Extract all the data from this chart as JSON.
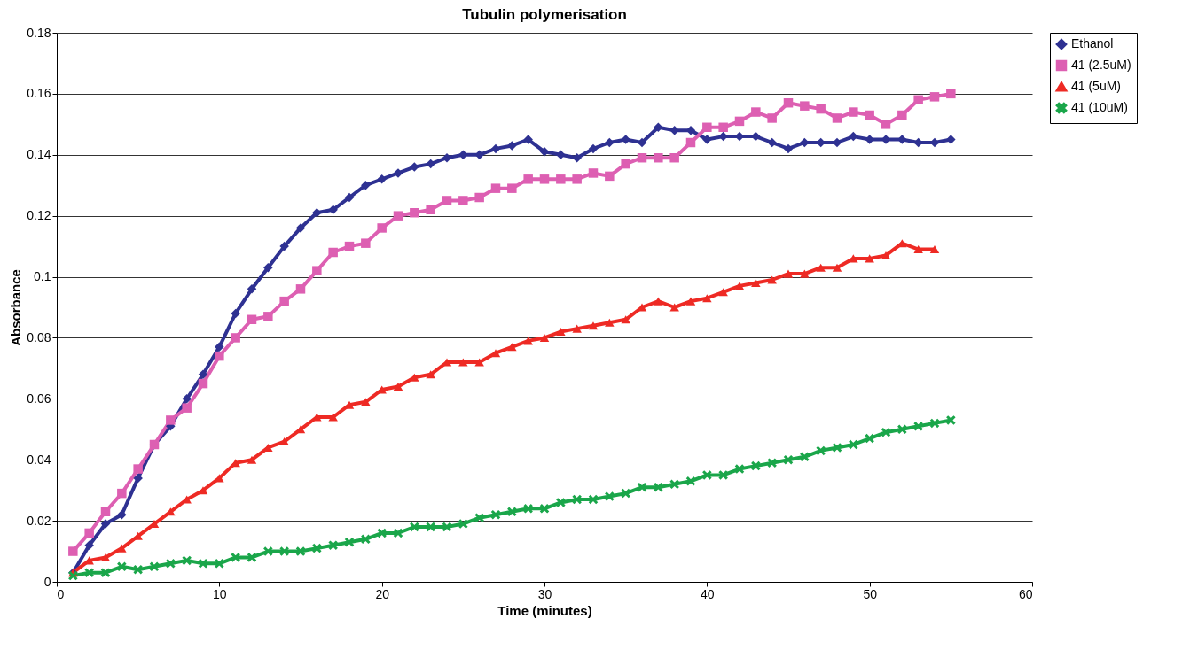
{
  "chart_data": {
    "type": "line",
    "title": "Tubulin polymerisation",
    "xlabel": "Time (minutes)",
    "ylabel": "Absorbance",
    "x": [
      1,
      2,
      3,
      4,
      5,
      6,
      7,
      8,
      9,
      10,
      11,
      12,
      13,
      14,
      15,
      16,
      17,
      18,
      19,
      20,
      21,
      22,
      23,
      24,
      25,
      26,
      27,
      28,
      29,
      30,
      31,
      32,
      33,
      34,
      35,
      36,
      37,
      38,
      39,
      40,
      41,
      42,
      43,
      44,
      45,
      46,
      47,
      48,
      49,
      50,
      51,
      52,
      53,
      54,
      55
    ],
    "series": [
      {
        "name": "Ethanol",
        "color": "#2e3192",
        "marker": "diamond",
        "values": [
          0.003,
          0.012,
          0.019,
          0.022,
          0.034,
          0.045,
          0.051,
          0.06,
          0.068,
          0.077,
          0.088,
          0.096,
          0.103,
          0.11,
          0.116,
          0.121,
          0.122,
          0.126,
          0.13,
          0.132,
          0.134,
          0.136,
          0.137,
          0.139,
          0.14,
          0.14,
          0.142,
          0.143,
          0.145,
          0.141,
          0.14,
          0.139,
          0.142,
          0.144,
          0.145,
          0.144,
          0.149,
          0.148,
          0.148,
          0.145,
          0.146,
          0.146,
          0.146,
          0.144,
          0.142,
          0.144,
          0.144,
          0.144,
          0.146,
          0.145,
          0.145,
          0.145,
          0.144,
          0.144,
          0.145
        ]
      },
      {
        "name": "41 (2.5uM)",
        "color": "#dd5fb2",
        "marker": "square",
        "values": [
          0.01,
          0.016,
          0.023,
          0.029,
          0.037,
          0.045,
          0.053,
          0.057,
          0.065,
          0.074,
          0.08,
          0.086,
          0.087,
          0.092,
          0.096,
          0.102,
          0.108,
          0.11,
          0.111,
          0.116,
          0.12,
          0.121,
          0.122,
          0.125,
          0.125,
          0.126,
          0.129,
          0.129,
          0.132,
          0.132,
          0.132,
          0.132,
          0.134,
          0.133,
          0.137,
          0.139,
          0.139,
          0.139,
          0.144,
          0.149,
          0.149,
          0.151,
          0.154,
          0.152,
          0.157,
          0.156,
          0.155,
          0.152,
          0.154,
          0.153,
          0.15,
          0.153,
          0.158,
          0.159,
          0.16
        ]
      },
      {
        "name": "41 (5uM)",
        "color": "#ee2a24",
        "marker": "triangle",
        "values": [
          0.003,
          0.007,
          0.008,
          0.011,
          0.015,
          0.019,
          0.023,
          0.027,
          0.03,
          0.034,
          0.039,
          0.04,
          0.044,
          0.046,
          0.05,
          0.054,
          0.054,
          0.058,
          0.059,
          0.063,
          0.064,
          0.067,
          0.068,
          0.072,
          0.072,
          0.072,
          0.075,
          0.077,
          0.079,
          0.08,
          0.082,
          0.083,
          0.084,
          0.085,
          0.086,
          0.09,
          0.092,
          0.09,
          0.092,
          0.093,
          0.095,
          0.097,
          0.098,
          0.099,
          0.101,
          0.101,
          0.103,
          0.103,
          0.106,
          0.106,
          0.107,
          0.111,
          0.109,
          0.109,
          null
        ]
      },
      {
        "name": "41 (10uM)",
        "color": "#1aa64a",
        "marker": "cross",
        "values": [
          0.002,
          0.003,
          0.003,
          0.005,
          0.004,
          0.005,
          0.006,
          0.007,
          0.006,
          0.006,
          0.008,
          0.008,
          0.01,
          0.01,
          0.01,
          0.011,
          0.012,
          0.013,
          0.014,
          0.016,
          0.016,
          0.018,
          0.018,
          0.018,
          0.019,
          0.021,
          0.022,
          0.023,
          0.024,
          0.024,
          0.026,
          0.027,
          0.027,
          0.028,
          0.029,
          0.031,
          0.031,
          0.032,
          0.033,
          0.035,
          0.035,
          0.037,
          0.038,
          0.039,
          0.04,
          0.041,
          0.043,
          0.044,
          0.045,
          0.047,
          0.049,
          0.05,
          0.051,
          0.052,
          0.053
        ]
      }
    ],
    "xlim": [
      0,
      60
    ],
    "xticks": [
      0,
      10,
      20,
      30,
      40,
      50,
      60
    ],
    "ylim": [
      0,
      0.18
    ],
    "yticks": [
      0,
      0.02,
      0.04,
      0.06,
      0.08,
      0.1,
      0.12,
      0.14,
      0.16,
      0.18
    ],
    "grid": "y",
    "legend": "right"
  }
}
